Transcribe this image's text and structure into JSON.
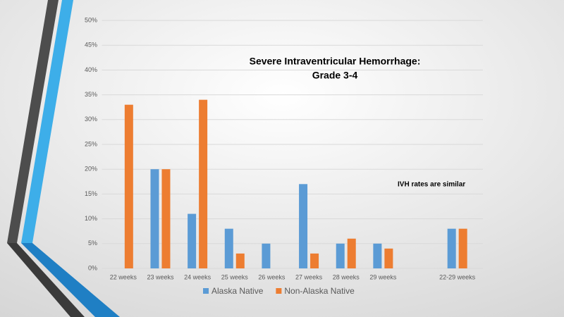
{
  "chart_data": {
    "type": "bar",
    "title": [
      "Severe Intraventricular Hemorrhage:",
      "Grade 3-4"
    ],
    "annotation": "IVH rates are similar",
    "categories": [
      "22 weeks",
      "23 weeks",
      "24 weeks",
      "25 weeks",
      "26 weeks",
      "27 weeks",
      "28 weeks",
      "29 weeks",
      null,
      "22-29 weeks"
    ],
    "series": [
      {
        "name": "Alaska Native",
        "color": "#5b9bd5",
        "values": [
          null,
          20,
          11,
          8,
          5,
          17,
          5,
          5,
          null,
          8
        ]
      },
      {
        "name": "Non-Alaska Native",
        "color": "#ed7d31",
        "values": [
          33,
          20,
          34,
          3,
          null,
          3,
          6,
          4,
          null,
          8
        ]
      }
    ],
    "ylim": [
      0,
      50
    ],
    "yticks": [
      {
        "value": 0,
        "label": "0%"
      },
      {
        "value": 5,
        "label": "5%"
      },
      {
        "value": 10,
        "label": "10%"
      },
      {
        "value": 15,
        "label": "15%"
      },
      {
        "value": 20,
        "label": "20%"
      },
      {
        "value": 25,
        "label": "25%"
      },
      {
        "value": 30,
        "label": "30%"
      },
      {
        "value": 35,
        "label": "35%"
      },
      {
        "value": 40,
        "label": "40%"
      },
      {
        "value": 45,
        "label": "45%"
      },
      {
        "value": 50,
        "label": "50%"
      }
    ],
    "grid": true
  }
}
